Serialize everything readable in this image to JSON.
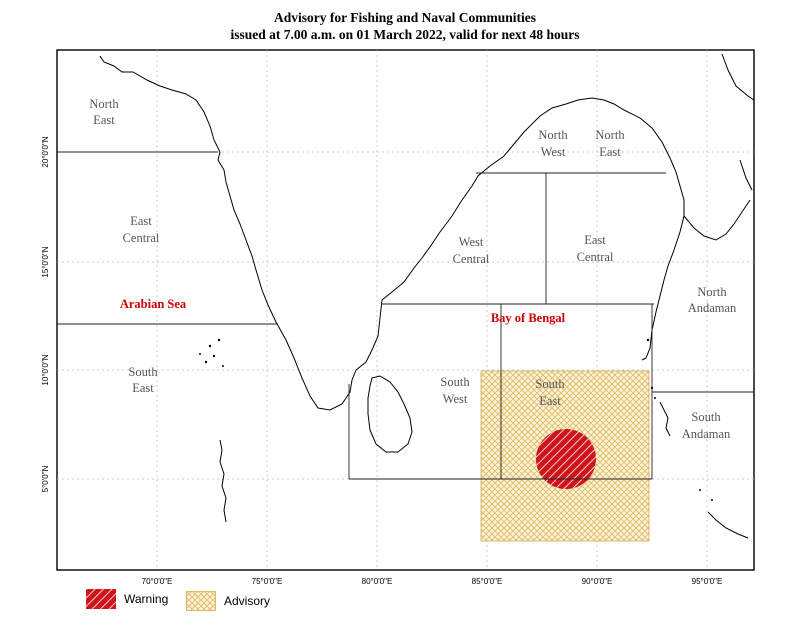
{
  "title": {
    "line1": "Advisory for Fishing and Naval Communities",
    "line2": "issued at 7.00 a.m. on 01 March  2022, valid for next 48 hours"
  },
  "lat_labels": [
    "20°0'0\"N",
    "15°0'0\"N",
    "10°0'0\"N",
    "5°0'0\"N"
  ],
  "lon_labels": [
    "70°0'0\"E",
    "75°0'0\"E",
    "80°0'0\"E",
    "85°0'0\"E",
    "90°0'0\"E",
    "95°0'0\"E"
  ],
  "regions": {
    "arabian_sea": "Arabian Sea",
    "bay_of_bengal": "Bay of Bengal",
    "as_ne_1": "North",
    "as_ne_2": "East",
    "as_ec_1": "East",
    "as_ec_2": "Central",
    "as_se_1": "South",
    "as_se_2": "East",
    "bb_nw_1": "North",
    "bb_nw_2": "West",
    "bb_ne_1": "North",
    "bb_ne_2": "East",
    "bb_wc_1": "West",
    "bb_wc_2": "Central",
    "bb_ec_1": "East",
    "bb_ec_2": "Central",
    "bb_sw_1": "South",
    "bb_sw_2": "West",
    "bb_se_1": "South",
    "bb_se_2": "East",
    "na_1": "North",
    "na_2": "Andaman",
    "sa_1": "South",
    "sa_2": "Andaman"
  },
  "legend": {
    "warning": "Warning",
    "advisory": "Advisory"
  },
  "colors": {
    "warning": "#d0141c",
    "advisory": "#e8c060",
    "advisory_fill": "#fbf2d8",
    "region_label": "#555555",
    "sea_label": "#cc0000"
  }
}
